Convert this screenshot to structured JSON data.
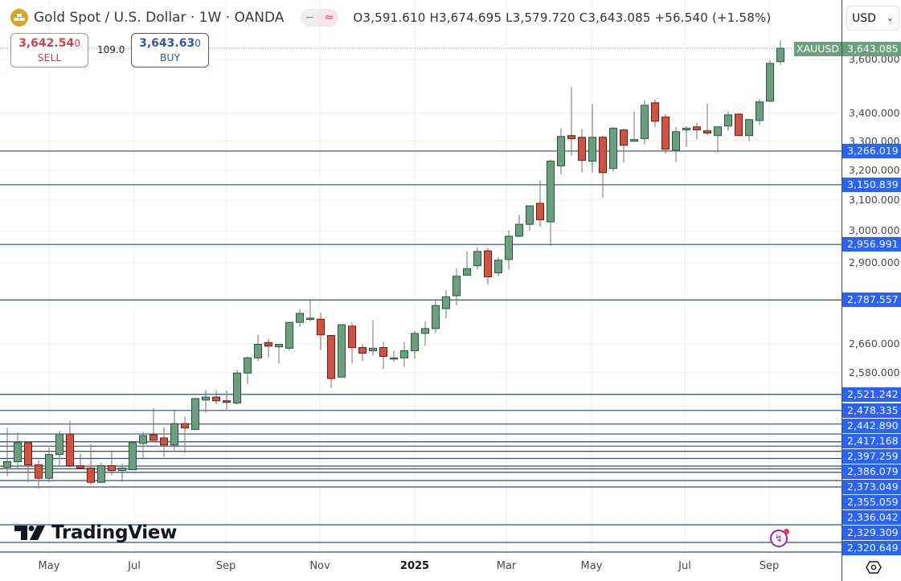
{
  "header": {
    "title": "Gold Spot / U.S. Dollar · 1W · OANDA",
    "pill_left": "−",
    "pill_right": "≈",
    "ohlc": "O3,591.610 H3,674.695 L3,579.720 C3,643.085 +56.540 (+1.58%)"
  },
  "trade": {
    "sell_price_main": "3,642.54",
    "sell_price_last": "0",
    "sell_label": "SELL",
    "spread": "109.0",
    "buy_price_main": "3,643.63",
    "buy_price_last": "0",
    "buy_label": "BUY"
  },
  "currency": {
    "selected": "USD"
  },
  "symbol_tag": "XAUUSD",
  "last_price_label": "3,643.085",
  "logo": "TradingView",
  "colors": {
    "up": "#6a9f80",
    "up_border": "#245a3a",
    "down": "#d4503f",
    "down_border": "#6b1e14",
    "wick": "#737375",
    "level_line": "#2d4f7a",
    "level_label": "#2962ff"
  },
  "icons": {
    "symbol": "gold-bars-icon",
    "currency": "chevron-down-icon",
    "bolt": "lightning-icon",
    "settings": "settings-hexagon-icon"
  },
  "chart_data": {
    "type": "candlestick",
    "interval": "1W",
    "scale": "log",
    "grid": true,
    "x_tick_labels": [
      "May",
      "Jul",
      "Sep",
      "Nov",
      "2025",
      "Mar",
      "May",
      "Jul",
      "Sep"
    ],
    "y_tick_labels": [
      {
        "value": 3600,
        "label": "3,600.000"
      },
      {
        "value": 3400,
        "label": "3,400.000"
      },
      {
        "value": 3300,
        "label": "3,300.000"
      },
      {
        "value": 3200,
        "label": "3,200.000"
      },
      {
        "value": 3100,
        "label": "3,100.000"
      },
      {
        "value": 3000,
        "label": "3,000.000"
      },
      {
        "value": 2900,
        "label": "2,900.000"
      },
      {
        "value": 2660,
        "label": "2,660.000"
      },
      {
        "value": 2580,
        "label": "2,580.000"
      }
    ],
    "levels": [
      {
        "value": 3266.019,
        "label": "3,266.019"
      },
      {
        "value": 3150.839,
        "label": "3,150.839"
      },
      {
        "value": 2956.991,
        "label": "2,956.991"
      },
      {
        "value": 2787.557,
        "label": "2,787.557"
      },
      {
        "value": 2521.242,
        "label": "2,521.242"
      },
      {
        "value": 2478.335,
        "label": "2,478.335"
      },
      {
        "value": 2442.89,
        "label": "2,442.890"
      },
      {
        "value": 2417.168,
        "label": "2,417.168"
      },
      {
        "value": 2397.259,
        "label": "2,397.259"
      },
      {
        "value": 2386.079,
        "label": "2,386.079"
      },
      {
        "value": 2373.049,
        "label": "2,373.049"
      },
      {
        "value": 2355.059,
        "label": "2,355.059"
      },
      {
        "value": 2336.042,
        "label": "2,336.042"
      },
      {
        "value": 2329.309,
        "label": "2,329.309"
      },
      {
        "value": 2320.649,
        "label": "2,320.649"
      }
    ],
    "unlabeled_levels": [
      2306,
      2290,
      2196,
      2148,
      2124
    ],
    "last_price": 3643.085,
    "candles": [
      [
        2333,
        2433,
        2311,
        2347
      ],
      [
        2347,
        2421,
        2327,
        2395
      ],
      [
        2395,
        2399,
        2296,
        2339
      ],
      [
        2339,
        2351,
        2280,
        2306
      ],
      [
        2306,
        2383,
        2296,
        2365
      ],
      [
        2365,
        2425,
        2337,
        2417
      ],
      [
        2417,
        2452,
        2333,
        2337
      ],
      [
        2337,
        2367,
        2329,
        2331
      ],
      [
        2331,
        2391,
        2290,
        2296
      ],
      [
        2296,
        2345,
        2294,
        2337
      ],
      [
        2337,
        2373,
        2314,
        2325
      ],
      [
        2325,
        2343,
        2298,
        2331
      ],
      [
        2327,
        2397,
        2327,
        2395
      ],
      [
        2393,
        2423,
        2353,
        2413
      ],
      [
        2415,
        2485,
        2399,
        2401
      ],
      [
        2407,
        2435,
        2359,
        2389
      ],
      [
        2389,
        2481,
        2375,
        2444
      ],
      [
        2444,
        2463,
        2369,
        2433
      ],
      [
        2429,
        2512,
        2427,
        2510
      ],
      [
        2506,
        2534,
        2473,
        2514
      ],
      [
        2514,
        2532,
        2495,
        2504
      ],
      [
        2504,
        2532,
        2477,
        2500
      ],
      [
        2498,
        2588,
        2494,
        2579
      ],
      [
        2579,
        2625,
        2549,
        2621
      ],
      [
        2621,
        2686,
        2612,
        2659
      ],
      [
        2664,
        2675,
        2623,
        2654
      ],
      [
        2652,
        2659,
        2605,
        2659
      ],
      [
        2648,
        2722,
        2641,
        2722
      ],
      [
        2722,
        2760,
        2708,
        2748
      ],
      [
        2731,
        2790,
        2724,
        2734
      ],
      [
        2731,
        2750,
        2643,
        2686
      ],
      [
        2684,
        2686,
        2538,
        2564
      ],
      [
        2568,
        2715,
        2568,
        2715
      ],
      [
        2711,
        2722,
        2605,
        2650
      ],
      [
        2650,
        2659,
        2612,
        2634
      ],
      [
        2641,
        2727,
        2627,
        2648
      ],
      [
        2650,
        2666,
        2590,
        2625
      ],
      [
        2619,
        2641,
        2610,
        2621
      ],
      [
        2621,
        2666,
        2596,
        2641
      ],
      [
        2641,
        2697,
        2618,
        2690
      ],
      [
        2690,
        2724,
        2655,
        2704
      ],
      [
        2704,
        2786,
        2692,
        2771
      ],
      [
        2762,
        2816,
        2734,
        2797
      ],
      [
        2800,
        2884,
        2771,
        2859
      ],
      [
        2862,
        2935,
        2862,
        2882
      ],
      [
        2891,
        2947,
        2879,
        2935
      ],
      [
        2937,
        2947,
        2833,
        2857
      ],
      [
        2869,
        2918,
        2859,
        2908
      ],
      [
        2910,
        3001,
        2879,
        2983
      ],
      [
        2983,
        3052,
        2981,
        3021
      ],
      [
        3021,
        3083,
        3001,
        3081
      ],
      [
        3089,
        3165,
        3013,
        3036
      ],
      [
        3029,
        3237,
        2953,
        3231
      ],
      [
        3215,
        3346,
        3186,
        3317
      ],
      [
        3320,
        3496,
        3249,
        3309
      ],
      [
        3314,
        3343,
        3192,
        3234
      ],
      [
        3231,
        3432,
        3192,
        3314
      ],
      [
        3314,
        3320,
        3108,
        3192
      ],
      [
        3206,
        3351,
        3195,
        3346
      ],
      [
        3340,
        3346,
        3227,
        3286
      ],
      [
        3300,
        3406,
        3300,
        3306
      ],
      [
        3309,
        3448,
        3289,
        3429
      ],
      [
        3438,
        3450,
        3351,
        3371
      ],
      [
        3386,
        3397,
        3258,
        3272
      ],
      [
        3269,
        3351,
        3227,
        3334
      ],
      [
        3340,
        3354,
        3280,
        3346
      ],
      [
        3351,
        3366,
        3306,
        3340
      ],
      [
        3337,
        3435,
        3320,
        3329
      ],
      [
        3320,
        3351,
        3261,
        3351
      ],
      [
        3354,
        3406,
        3337,
        3394
      ],
      [
        3397,
        3397,
        3318,
        3320
      ],
      [
        3320,
        3380,
        3300,
        3377
      ],
      [
        3374,
        3450,
        3357,
        3441
      ],
      [
        3444,
        3597,
        3441,
        3585
      ],
      [
        3591.61,
        3674.695,
        3579.72,
        3643.085
      ]
    ]
  }
}
